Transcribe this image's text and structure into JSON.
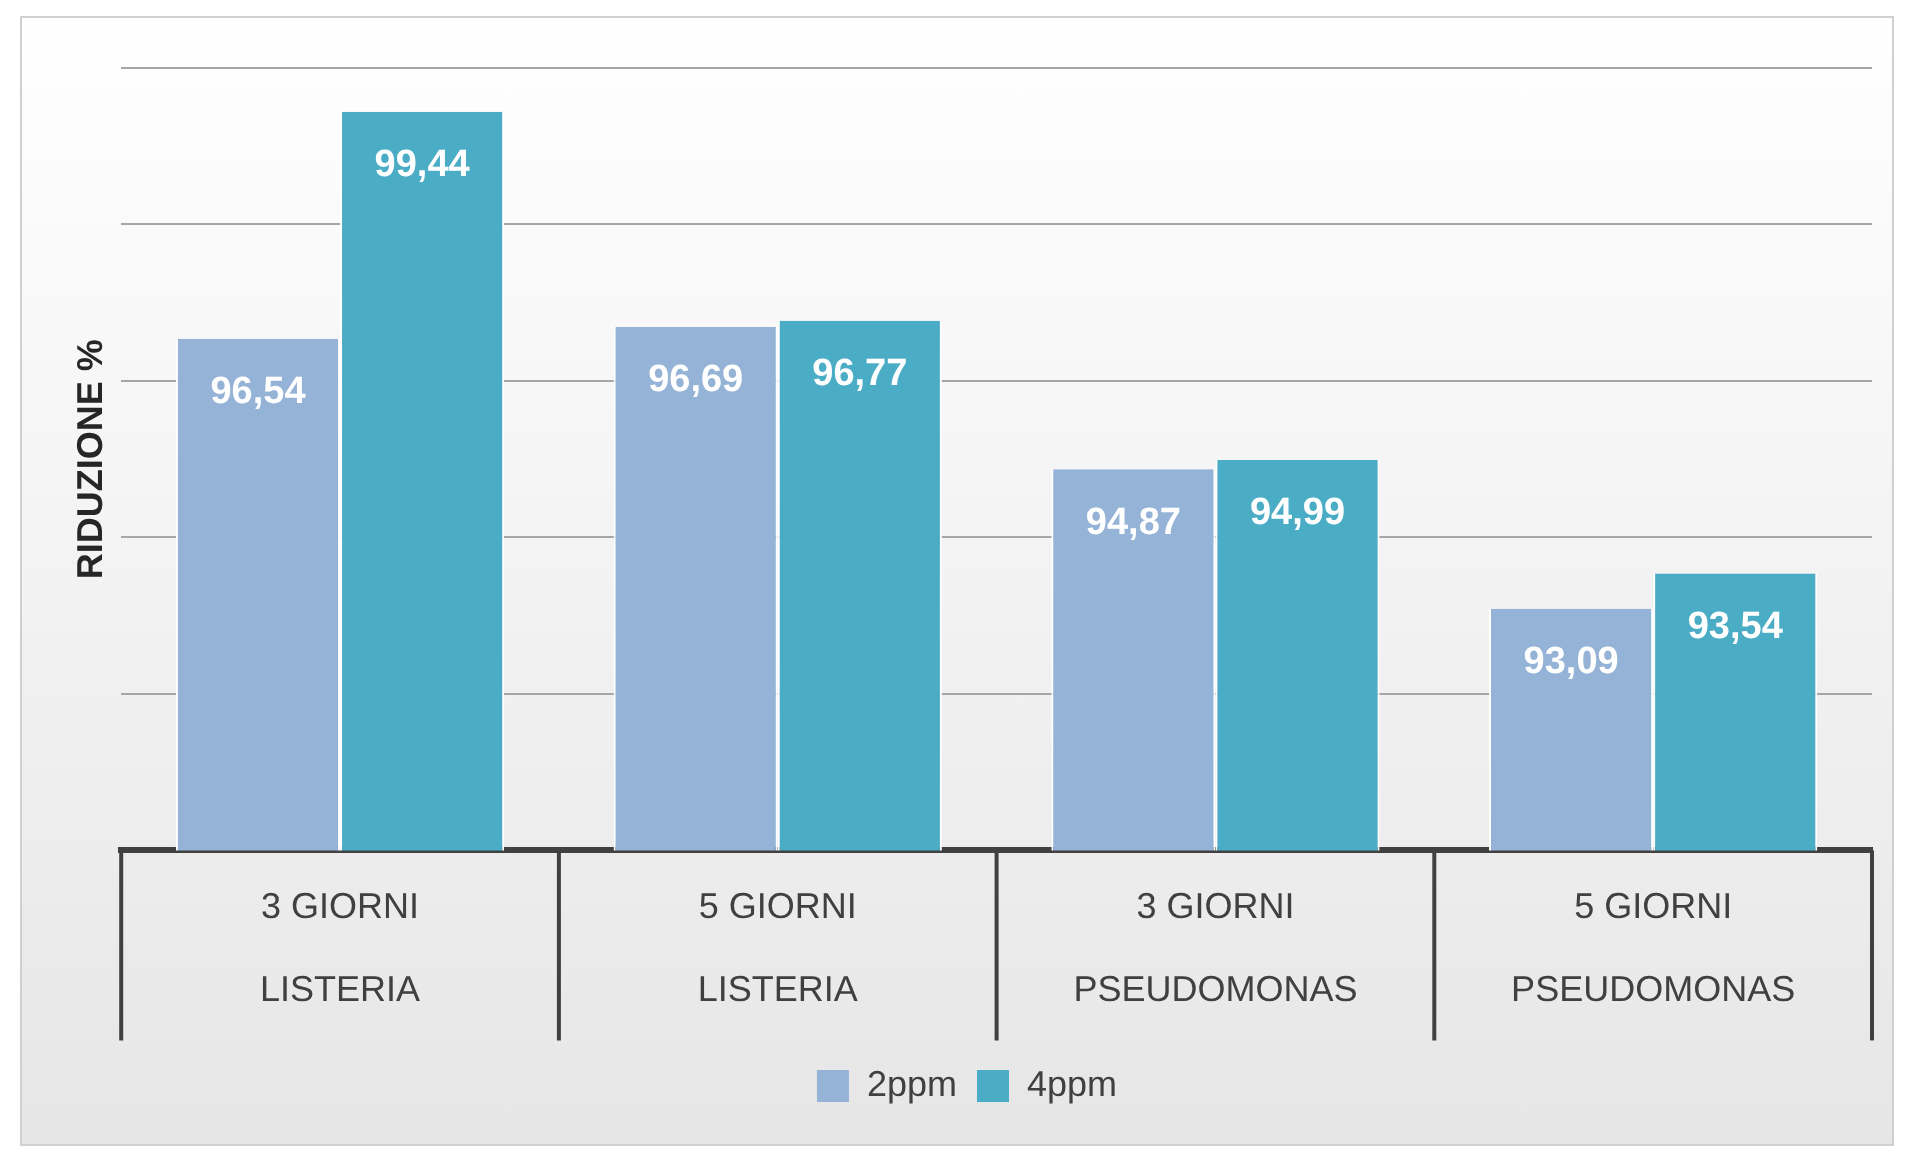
{
  "chart_data": {
    "type": "bar",
    "ylabel": "RIDUZIONE %",
    "categories": [
      "3 GIORNI\nLISTERIA",
      "5 GIORNI\nLISTERIA",
      "3 GIORNI\nPSEUDOMONAS",
      "5 GIORNI\nPSEUDOMONAS"
    ],
    "series": [
      {
        "name": "2ppm",
        "color": "#95b3d7",
        "values": [
          96.54,
          96.69,
          94.87,
          93.09
        ],
        "value_labels": [
          "96,54",
          "96,69",
          "94,87",
          "93,09"
        ]
      },
      {
        "name": "4ppm",
        "color": "#4bacc6",
        "values": [
          99.44,
          96.77,
          94.99,
          93.54
        ],
        "value_labels": [
          "99,44",
          "96,77",
          "94,99",
          "93,54"
        ]
      }
    ],
    "ylim": [
      90,
      100
    ],
    "yticks": [
      {
        "value": 90,
        "label": null
      },
      {
        "value": 92,
        "label": null
      },
      {
        "value": 94,
        "label": null
      },
      {
        "value": 96,
        "label": null
      },
      {
        "value": 98,
        "label": null
      },
      {
        "value": 100,
        "label": null
      }
    ],
    "tick_labels": "x",
    "grid": "y",
    "legend": "bottom"
  }
}
